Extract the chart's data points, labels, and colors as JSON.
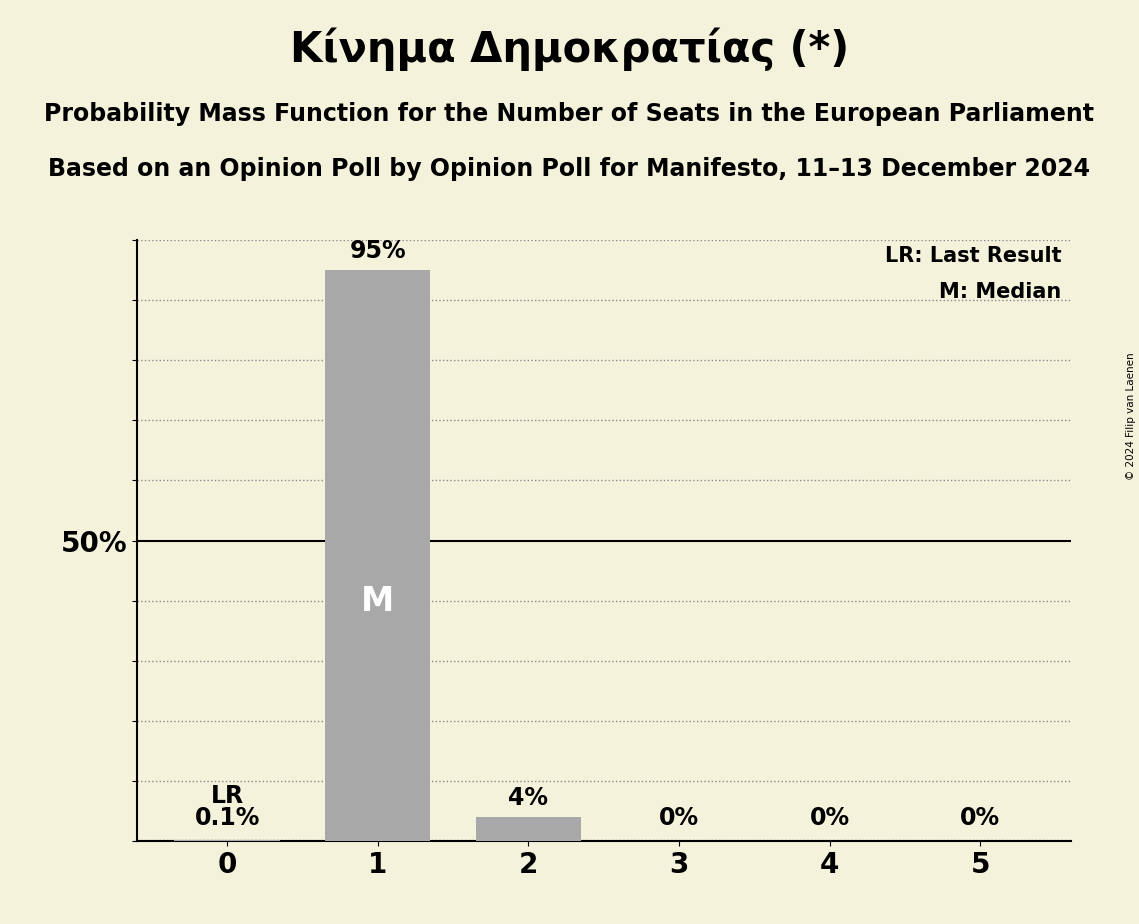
{
  "title": "Κίνημα Δημοκρατίας (*)",
  "subtitle1": "Probability Mass Function for the Number of Seats in the European Parliament",
  "subtitle2": "Based on an Opinion Poll by Opinion Poll for Manifesto, 11–13 December 2024",
  "copyright": "© 2024 Filip van Laenen",
  "categories": [
    0,
    1,
    2,
    3,
    4,
    5
  ],
  "probabilities": [
    0.001,
    0.95,
    0.04,
    0.0,
    0.0,
    0.0
  ],
  "bar_labels": [
    "0.1%",
    "95%",
    "4%",
    "0%",
    "0%",
    "0%"
  ],
  "bar_color": "#a8a8a8",
  "median_seat": 1,
  "median_label": "M",
  "lr_seat": 0,
  "lr_label": "LR",
  "background_color": "#f5f2dc",
  "title_fontsize": 30,
  "subtitle_fontsize": 17,
  "ylim": [
    0,
    1.0
  ],
  "yticks": [
    0.0,
    0.1,
    0.2,
    0.3,
    0.4,
    0.5,
    0.6,
    0.7,
    0.8,
    0.9,
    1.0
  ],
  "legend_lr": "LR: Last Result",
  "legend_m": "M: Median"
}
